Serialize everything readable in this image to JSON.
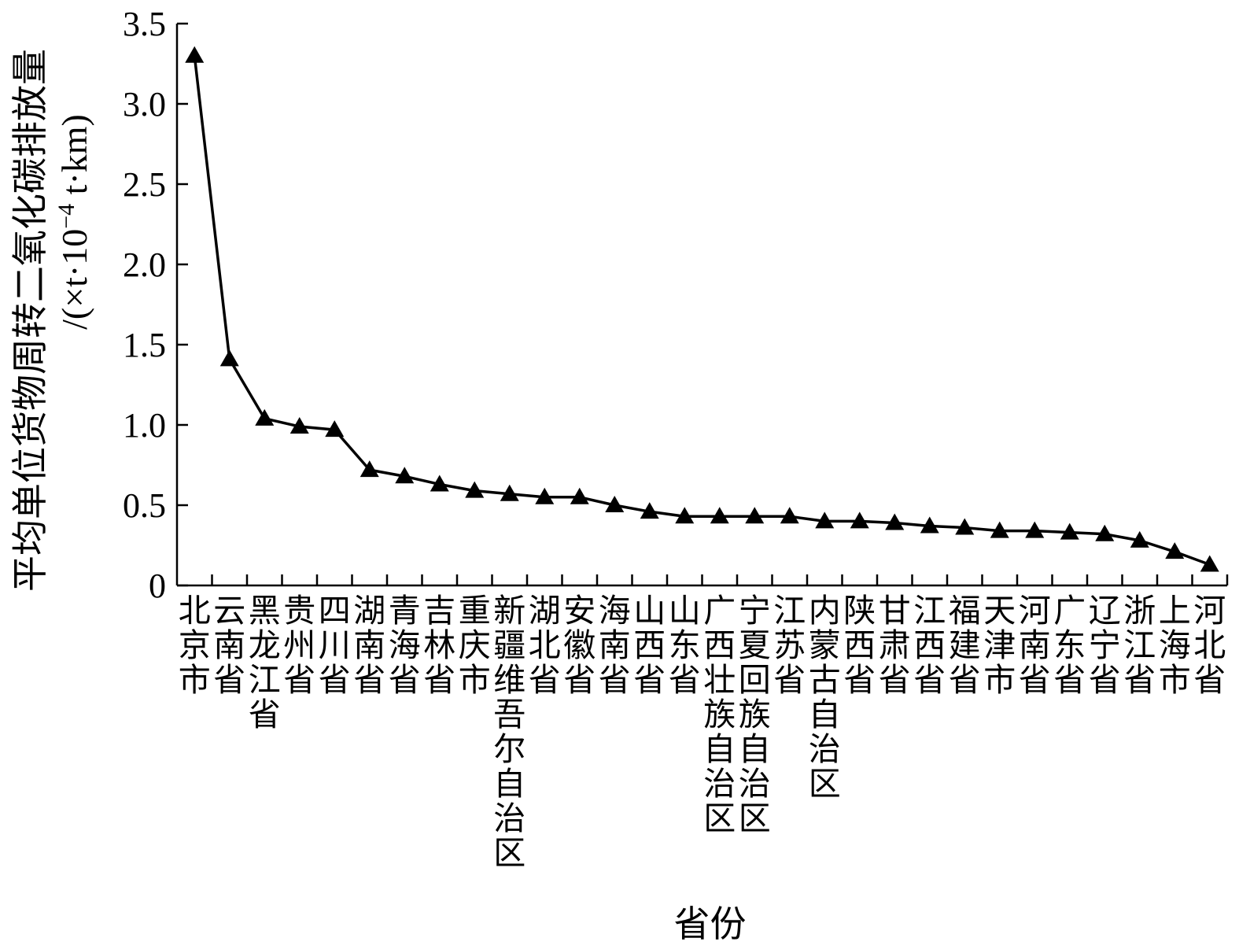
{
  "chart_data": {
    "type": "line",
    "marker": "triangle",
    "color": "#000000",
    "xlabel": "省份",
    "ylabel_line1": "平均单位货物周转二氧化碳排放量",
    "ylabel_line2": "/(×t·10",
    "ylabel_sup": "−4",
    "ylabel_tail": " t·km)",
    "ylim": [
      0,
      3.5
    ],
    "yticks": [
      "0",
      "0.5",
      "1.0",
      "1.5",
      "2.0",
      "2.5",
      "3.0",
      "3.5"
    ],
    "grid": false,
    "legend": "none",
    "categories": [
      "北京市",
      "云南省",
      "黑龙江省",
      "贵州省",
      "四川省",
      "湖南省",
      "青海省",
      "吉林省",
      "重庆市",
      "新疆维吾尔自治区",
      "湖北省",
      "安徽省",
      "海南省",
      "山西省",
      "山东省",
      "广西壮族自治区",
      "宁夏回族自治区",
      "江苏省",
      "内蒙古自治区",
      "陕西省",
      "甘肃省",
      "江西省",
      "福建省",
      "天津市",
      "河南省",
      "广东省",
      "辽宁省",
      "浙江省",
      "上海市",
      "河北省"
    ],
    "values": [
      3.3,
      1.41,
      1.04,
      0.99,
      0.97,
      0.72,
      0.68,
      0.63,
      0.59,
      0.57,
      0.55,
      0.55,
      0.5,
      0.46,
      0.43,
      0.43,
      0.43,
      0.43,
      0.4,
      0.4,
      0.39,
      0.37,
      0.36,
      0.34,
      0.34,
      0.33,
      0.32,
      0.28,
      0.21,
      0.13
    ]
  }
}
